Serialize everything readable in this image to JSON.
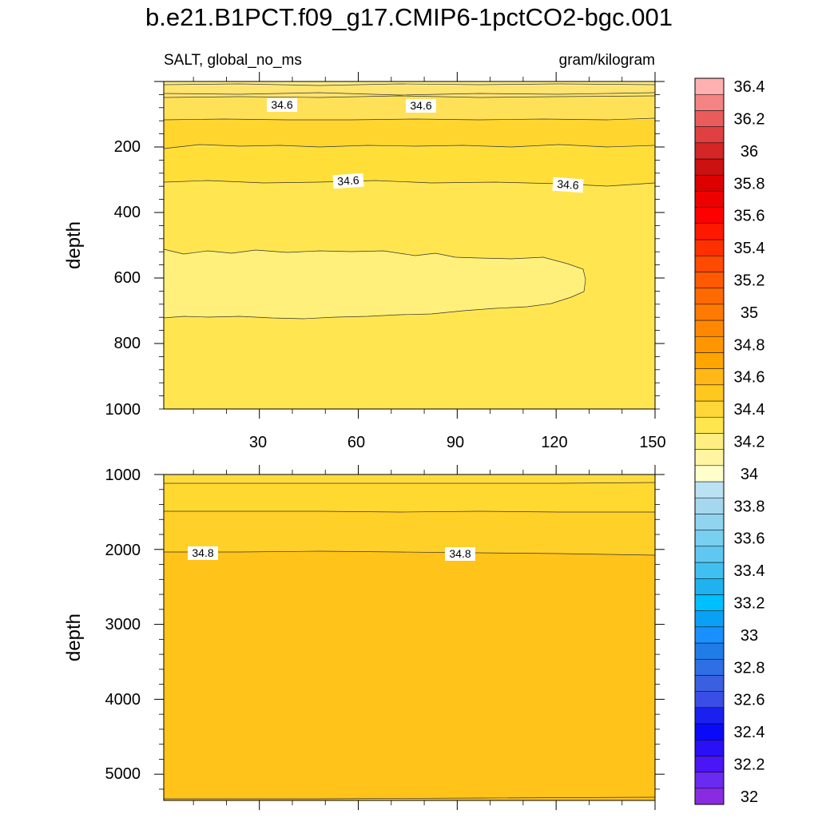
{
  "header": {
    "title": "b.e21.B1PCT.f09_g17.CMIP6-1pctCO2-bgc.001",
    "left_subtitle": "SALT, global_no_ms",
    "right_subtitle": "gram/kilogram"
  },
  "chart_data": [
    {
      "type": "contour",
      "panel": "upper",
      "variable": "SALT",
      "units": "gram/kilogram",
      "xlabel": "",
      "ylabel": "depth",
      "xlim": [
        1,
        150
      ],
      "ylim": [
        1000,
        0
      ],
      "y_reversed": true,
      "x_ticks": [
        30,
        60,
        90,
        120,
        150
      ],
      "y_ticks": [
        200,
        400,
        600,
        800,
        1000
      ],
      "contour_labels": [
        {
          "x": 36,
          "y": 85,
          "text": "34.6"
        },
        {
          "x": 78,
          "y": 85,
          "text": "34.6"
        },
        {
          "x": 56,
          "y": 315,
          "text": "34.6"
        },
        {
          "x": 123,
          "y": 323,
          "text": "34.6"
        }
      ],
      "contour_lines_depth": [
        10,
        45,
        70,
        115,
        205,
        310
      ],
      "fresh_core": {
        "level": 34.4,
        "depth_top": 510,
        "depth_bottom": 725,
        "x_end": 129
      }
    },
    {
      "type": "contour",
      "panel": "lower",
      "variable": "SALT",
      "units": "gram/kilogram",
      "xlabel": "",
      "ylabel": "depth",
      "xlim": [
        1,
        150
      ],
      "ylim": [
        1000,
        5350
      ],
      "y_reversed": true,
      "x_ticks": [
        30,
        60,
        90,
        120,
        150
      ],
      "x_tick_labels_shown": false,
      "y_ticks": [
        1000,
        2000,
        3000,
        4000,
        5000
      ],
      "contour_labels": [
        {
          "x": 13,
          "y": 2060,
          "text": "34.8"
        },
        {
          "x": 91,
          "y": 2065,
          "text": "34.8"
        }
      ],
      "contour_lines_depth": [
        1110,
        1500,
        2050,
        5330
      ]
    }
  ],
  "colorbar": {
    "levels": [
      "32",
      "32.2",
      "32.4",
      "32.6",
      "32.8",
      "33",
      "33.2",
      "33.4",
      "33.6",
      "33.8",
      "34",
      "34.2",
      "34.4",
      "34.6",
      "34.8",
      "35",
      "35.2",
      "35.4",
      "35.6",
      "35.8",
      "36",
      "36.2",
      "36.4"
    ],
    "colors_bottom_to_top": [
      "#8a2be2",
      "#6a2af0",
      "#4a16f5",
      "#2a10f7",
      "#0a0af8",
      "#1a20f0",
      "#3a4ee6",
      "#3a5fe0",
      "#2f6fe5",
      "#207de8",
      "#1a90ff",
      "#0aa0f5",
      "#00bfff",
      "#20b2ee",
      "#40c0f0",
      "#60c8f0",
      "#78cff0",
      "#90d4ef",
      "#a5d8ef",
      "#bbe2f2",
      "#ffffcc",
      "#fff5a0",
      "#ffee80",
      "#ffe64e",
      "#ffd738",
      "#ffc81e",
      "#ffb818",
      "#ffa500",
      "#ff9600",
      "#ff8800",
      "#ff7a00",
      "#ff6a00",
      "#ff5a00",
      "#ff4a00",
      "#ff3000",
      "#ff1800",
      "#ff0000",
      "#ee0000",
      "#dd0000",
      "#cc1111",
      "#d42626",
      "#e04040",
      "#ea5c5c",
      "#f48484",
      "#ffb0b0"
    ]
  },
  "field_colors": {
    "surface": "#ffef82",
    "band_1": "#ffe470",
    "band_2": "#ffe158",
    "band_3": "#ffd52e",
    "band_4": "#ffde38",
    "main": "#ffe650",
    "fresh_core": "#fff07c",
    "deep_upper": "#ffd830",
    "deep_mid": "#ffd028",
    "deep_main": "#ffc31a"
  }
}
